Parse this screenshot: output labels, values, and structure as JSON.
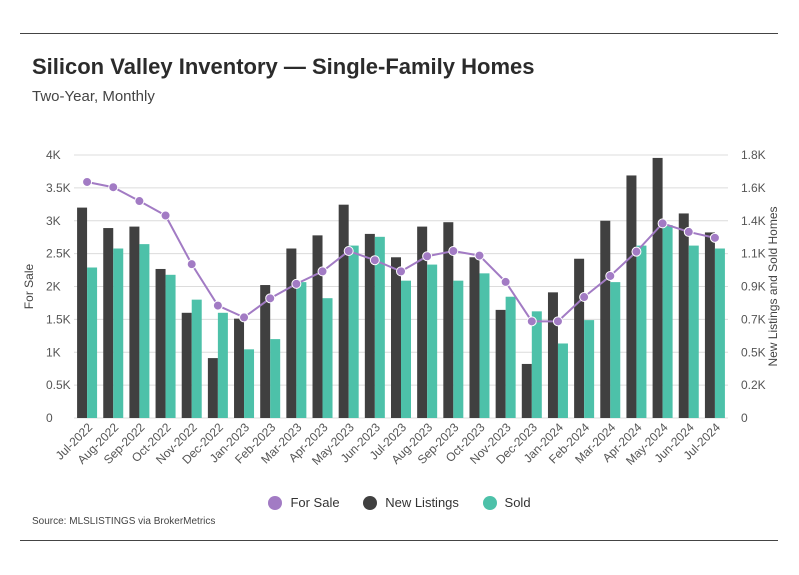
{
  "header": {
    "title": "Silicon Valley Inventory — Single-Family Homes",
    "subtitle": "Two-Year, Monthly"
  },
  "footer": {
    "source": "Source:  MLSLISTINGS via BrokerMetrics"
  },
  "colors": {
    "for_sale": "#a27bc4",
    "new_listings": "#404040",
    "sold": "#4dc1a9",
    "grid": "#dcdcdc"
  },
  "chart_data": {
    "type": "bar",
    "categories": [
      "Jul-2022",
      "Aug-2022",
      "Sep-2022",
      "Oct-2022",
      "Nov-2022",
      "Dec-2022",
      "Jan-2023",
      "Feb-2023",
      "Mar-2023",
      "Apr-2023",
      "May-2023",
      "Jun-2023",
      "Jul-2023",
      "Aug-2023",
      "Sep-2023",
      "Oct-2023",
      "Nov-2023",
      "Dec-2023",
      "Jan-2024",
      "Feb-2024",
      "Mar-2024",
      "Apr-2024",
      "May-2024",
      "Jun-2024",
      "Jul-2024"
    ],
    "series": [
      {
        "name": "For Sale",
        "type": "line",
        "axis": "left",
        "values": [
          3590,
          3510,
          3300,
          3080,
          2340,
          1710,
          1530,
          1820,
          2040,
          2230,
          2540,
          2400,
          2230,
          2460,
          2540,
          2470,
          2070,
          1470,
          1470,
          1840,
          2160,
          2530,
          2960,
          2830,
          2740
        ]
      },
      {
        "name": "New Listings",
        "type": "bar",
        "axis": "right",
        "values": [
          1440,
          1300,
          1310,
          1020,
          720,
          410,
          680,
          910,
          1160,
          1250,
          1460,
          1260,
          1100,
          1310,
          1340,
          1100,
          740,
          370,
          860,
          1090,
          1350,
          1660,
          1780,
          1400,
          1270
        ]
      },
      {
        "name": "Sold",
        "type": "bar",
        "axis": "right",
        "values": [
          1030,
          1160,
          1190,
          980,
          810,
          720,
          470,
          540,
          930,
          820,
          1180,
          1240,
          940,
          1050,
          940,
          990,
          830,
          730,
          510,
          670,
          930,
          1180,
          1320,
          1180,
          1160
        ]
      }
    ],
    "left_axis": {
      "label": "For Sale",
      "ylim": [
        0,
        4000
      ],
      "ticks": [
        "0",
        "0.5K",
        "1K",
        "1.5K",
        "2K",
        "2.5K",
        "3K",
        "3.5K",
        "4K"
      ]
    },
    "right_axis": {
      "label": "New Listings and Sold Homes",
      "ylim": [
        0,
        1800
      ],
      "ticks": [
        "0",
        "0.2K",
        "0.5K",
        "0.7K",
        "0.9K",
        "1.1K",
        "1.4K",
        "1.6K",
        "1.8K"
      ]
    },
    "legend": {
      "position": "bottom",
      "items": [
        "For Sale",
        "New Listings",
        "Sold"
      ]
    },
    "grid": true
  }
}
